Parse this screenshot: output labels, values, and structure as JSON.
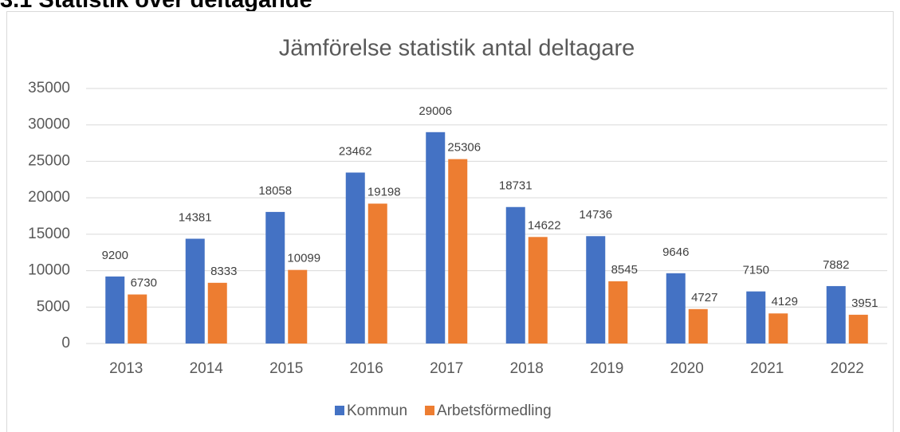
{
  "heading": "3.1 Statistik över deltagande",
  "chart_data": {
    "type": "bar",
    "title": "Jämförelse statistik antal deltagare",
    "categories": [
      "2013",
      "2014",
      "2015",
      "2016",
      "2017",
      "2018",
      "2019",
      "2020",
      "2021",
      "2022"
    ],
    "series": [
      {
        "name": "Kommun",
        "color": "#4472c4",
        "values": [
          9200,
          14381,
          18058,
          23462,
          29006,
          18731,
          14736,
          9646,
          7150,
          7882
        ]
      },
      {
        "name": "Arbetsförmedling",
        "color": "#ed7d31",
        "values": [
          6730,
          8333,
          10099,
          19198,
          25306,
          14622,
          8545,
          4727,
          4129,
          3951
        ]
      }
    ],
    "ylim": [
      0,
      35000
    ],
    "yticks": [
      0,
      5000,
      10000,
      15000,
      20000,
      25000,
      30000,
      35000
    ],
    "grid": true,
    "legend": "bottom"
  }
}
